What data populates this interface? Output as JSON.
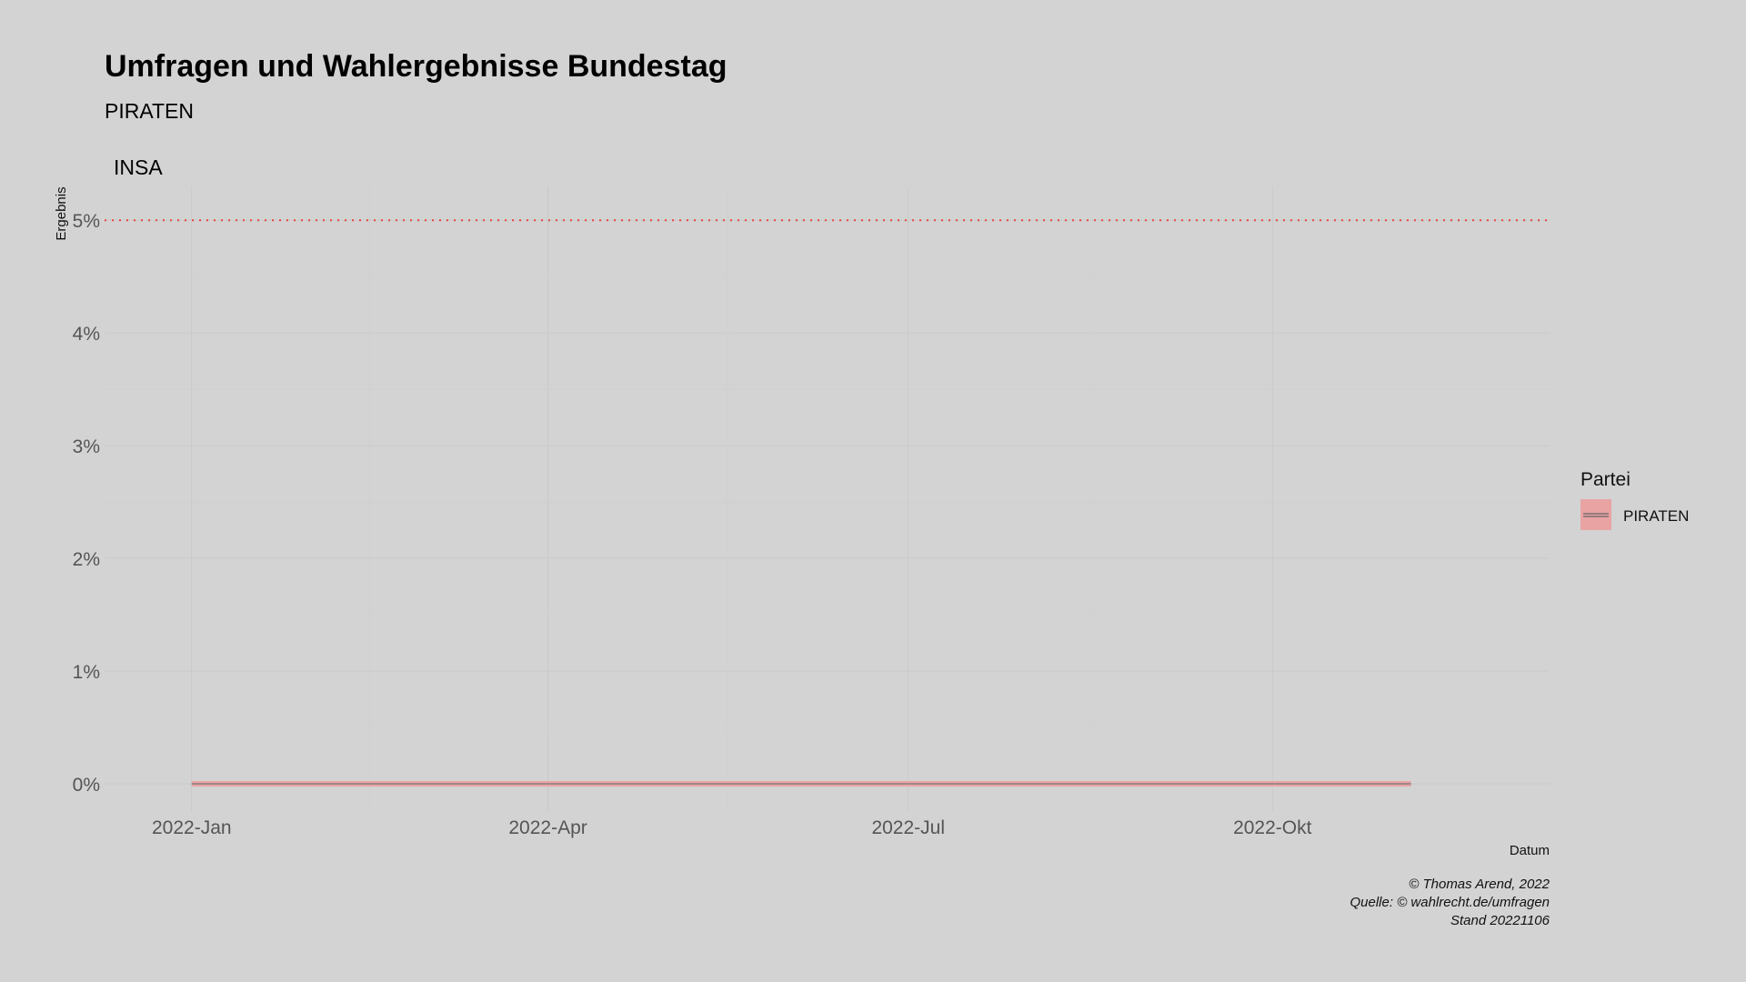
{
  "chart_data": {
    "type": "line",
    "title": "Umfragen und Wahlergebnisse Bundestag",
    "subtitle": "PIRATEN",
    "facet_label": "INSA",
    "xlabel": "Datum",
    "ylabel": "Ergebnis",
    "x_ticks": [
      "2022-Jan",
      "2022-Apr",
      "2022-Jul",
      "2022-Okt"
    ],
    "x_tick_dates": [
      "2022-01-01",
      "2022-04-01",
      "2022-07-01",
      "2022-10-01"
    ],
    "xlim": [
      "2021-12-10",
      "2022-12-10"
    ],
    "y_ticks": [
      "0%",
      "1%",
      "2%",
      "3%",
      "4%",
      "5%"
    ],
    "ylim": [
      -0.25,
      5.3
    ],
    "grid": true,
    "threshold": {
      "value": 5,
      "color": "#e8453c",
      "style": "dotted"
    },
    "series": [
      {
        "name": "PIRATEN",
        "color": "#e9a3a3",
        "x": [
          "2022-01-01",
          "2022-11-05"
        ],
        "y": [
          0,
          0
        ]
      }
    ],
    "legend": {
      "title": "Partei",
      "position": "right",
      "entries": [
        "PIRATEN"
      ]
    },
    "caption": [
      "© Thomas Arend, 2022",
      "Quelle: © wahlrecht.de/umfragen",
      "Stand 20221106"
    ]
  }
}
